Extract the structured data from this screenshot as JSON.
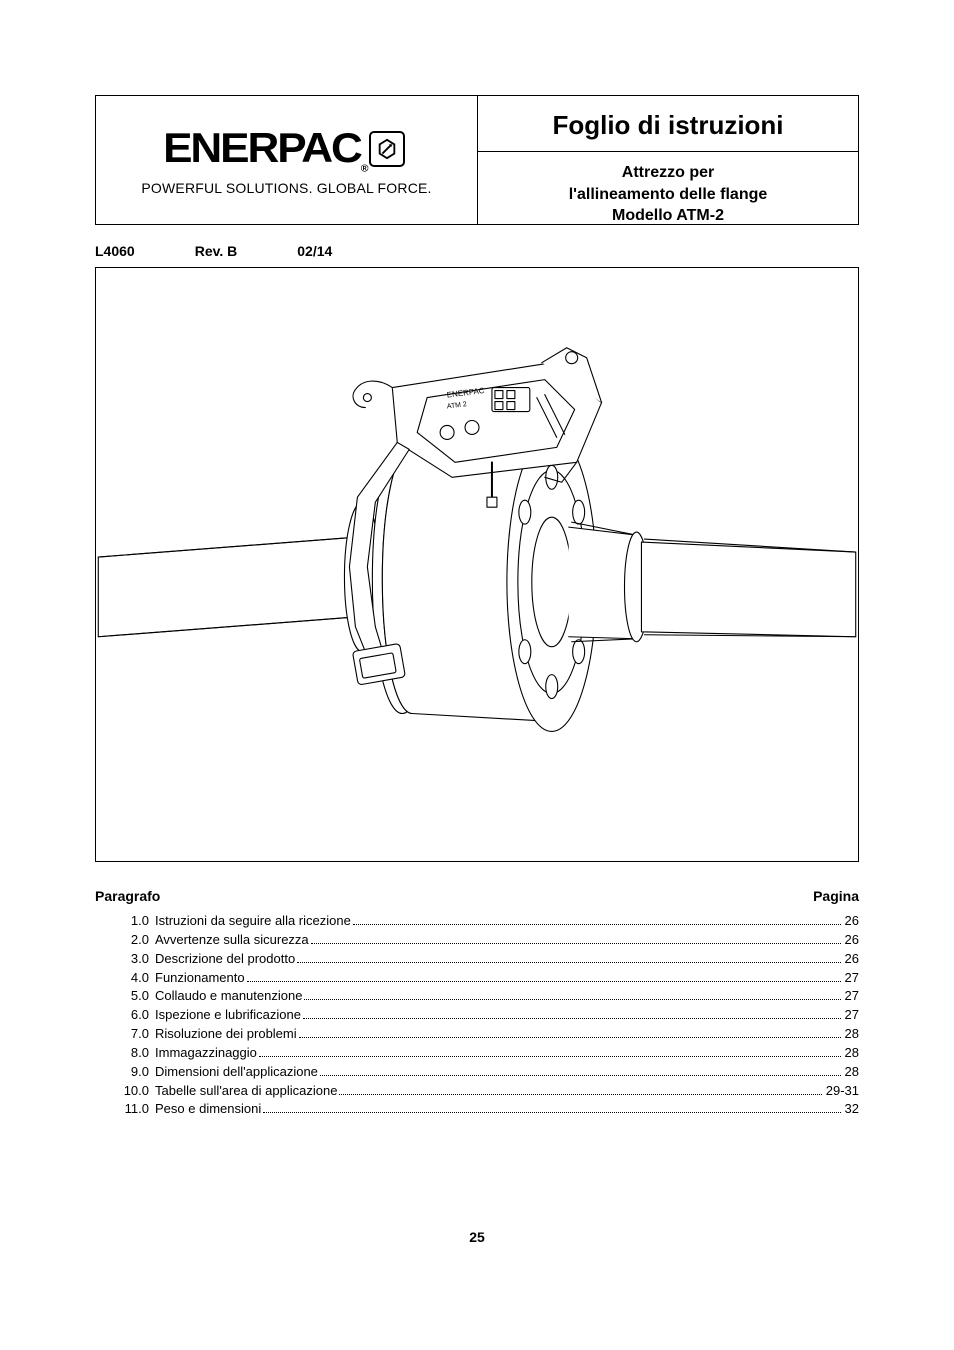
{
  "brand": {
    "name": "ENERPAC",
    "registered": "®",
    "tagline": "POWERFUL SOLUTIONS. GLOBAL FORCE."
  },
  "document": {
    "title": "Foglio di istruzioni",
    "subtitle_line1": "Attrezzo per",
    "subtitle_line2": "l'allineamento delle flange",
    "subtitle_line3": "Modello ATM-2"
  },
  "meta": {
    "code": "L4060",
    "revision": "Rev. B",
    "date": "02/14"
  },
  "toc": {
    "header_left": "Paragrafo",
    "header_right": "Pagina",
    "items": [
      {
        "num": "1.0",
        "label": "Istruzioni da seguire alla ricezione",
        "page": "26"
      },
      {
        "num": "2.0",
        "label": "Avvertenze sulla sicurezza",
        "page": "26"
      },
      {
        "num": "3.0",
        "label": "Descrizione del prodotto",
        "page": "26"
      },
      {
        "num": "4.0",
        "label": "Funzionamento",
        "page": "27"
      },
      {
        "num": "5.0",
        "label": "Collaudo e manutenzione",
        "page": "27"
      },
      {
        "num": "6.0",
        "label": "Ispezione e lubrificazione",
        "page": "27"
      },
      {
        "num": "7.0",
        "label": "Risoluzione dei problemi",
        "page": "28"
      },
      {
        "num": "8.0",
        "label": "Immagazzinaggio",
        "page": "28"
      },
      {
        "num": "9.0",
        "label": "Dimensioni dell'applicazione",
        "page": "28"
      },
      {
        "num": "10.0",
        "label": "Tabelle sull'area di applicazione",
        "page": "29-31"
      },
      {
        "num": "11.0",
        "label": "Peso e dimensioni",
        "page": "32"
      }
    ]
  },
  "page_number": "25",
  "illustration": {
    "pipe_color": "#ffffff",
    "stroke_color": "#000000",
    "stroke_width": 1.2,
    "label_text": "ATM 2",
    "brand_text": "ENERPAC"
  }
}
